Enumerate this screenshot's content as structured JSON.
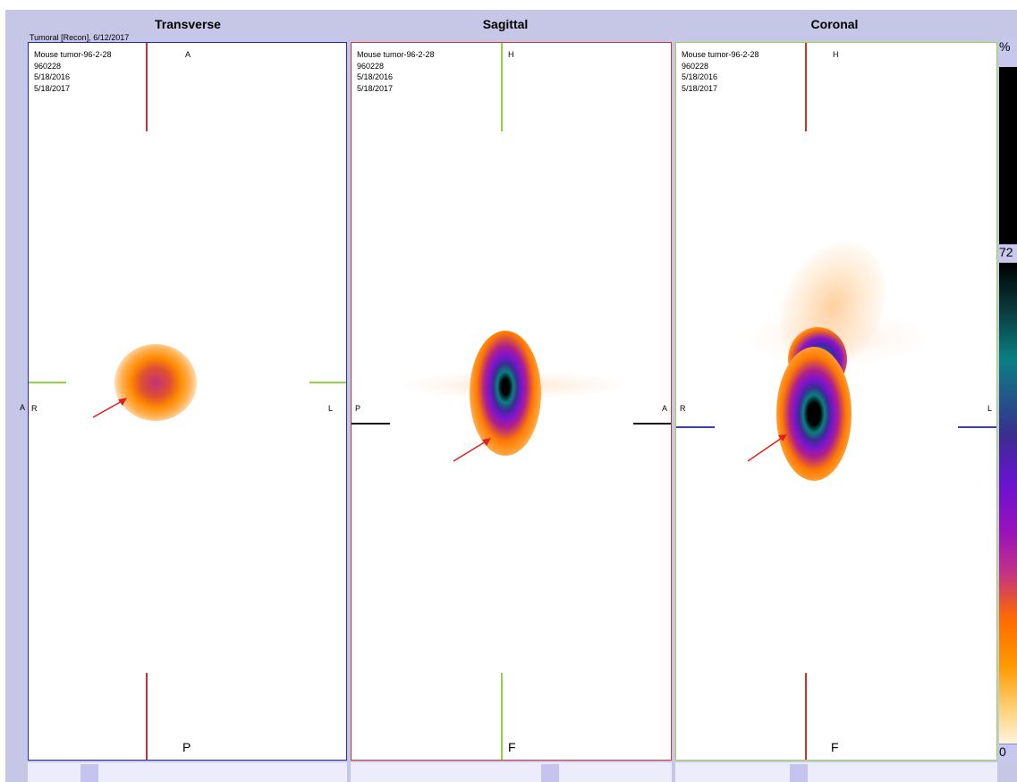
{
  "window": {
    "caption": "Tumoral [Recon], 6/12/2017",
    "percent_label": "%"
  },
  "panes": [
    {
      "title": "Transverse",
      "border_color": "#2c2c96",
      "info": {
        "subject": "Mouse tumor-96-2-28",
        "id": "960228",
        "date1": "5/18/2016",
        "date2": "5/18/2017"
      },
      "labels": {
        "top": "A",
        "left": "R",
        "right": "L",
        "bottom": "P",
        "outside_left": "A"
      },
      "crosshair": {
        "vertical_color": "#d03030",
        "horizontal_color": "#8fd440"
      }
    },
    {
      "title": "Sagittal",
      "border_color": "#c83838",
      "info": {
        "subject": "Mouse tumor-96-2-28",
        "id": "960228",
        "date1": "5/18/2016",
        "date2": "5/18/2017"
      },
      "labels": {
        "top": "H",
        "left": "P",
        "right": "A",
        "bottom": "F",
        "outside_left": "L"
      },
      "crosshair": {
        "vertical_color": "#8fd440",
        "horizontal_color": "#111111"
      }
    },
    {
      "title": "Coronal",
      "border_color": "#9ad64a",
      "info": {
        "subject": "Mouse tumor-96-2-28",
        "id": "960228",
        "date1": "5/18/2016",
        "date2": "5/18/2017"
      },
      "labels": {
        "top": "H",
        "left": "R",
        "right": "L",
        "bottom": "F",
        "outside_left": "A"
      },
      "crosshair": {
        "vertical_color": "#d03030",
        "horizontal_color": "#3a3ad0"
      }
    }
  ],
  "colorbar": {
    "upper_label": "72",
    "lower_label": "0"
  },
  "arrow_color": "#e02020"
}
